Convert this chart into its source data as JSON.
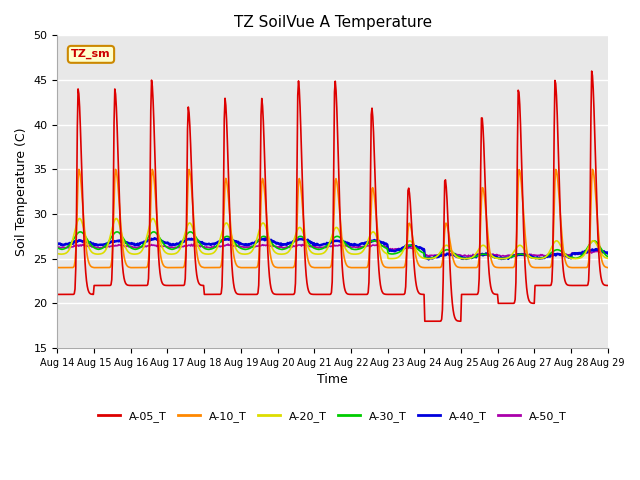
{
  "title": "TZ SoilVue A Temperature",
  "xlabel": "Time",
  "ylabel": "Soil Temperature (C)",
  "ylim": [
    15,
    50
  ],
  "bg_color": "#e8e8e8",
  "grid_color": "white",
  "annotation_text": "TZ_sm",
  "annotation_color": "#cc0000",
  "annotation_bg": "#ffffcc",
  "annotation_border": "#cc8800",
  "series_names": [
    "A-05_T",
    "A-10_T",
    "A-20_T",
    "A-30_T",
    "A-40_T",
    "A-50_T"
  ],
  "series_colors": [
    "#dd0000",
    "#ff8800",
    "#dddd00",
    "#00cc00",
    "#0000dd",
    "#aa00aa"
  ],
  "series_lw": [
    1.2,
    1.2,
    1.2,
    1.2,
    1.8,
    1.2
  ],
  "tick_dates": [
    "Aug 14",
    "Aug 15",
    "Aug 16",
    "Aug 17",
    "Aug 18",
    "Aug 19",
    "Aug 20",
    "Aug 21",
    "Aug 22",
    "Aug 23",
    "Aug 24",
    "Aug 25",
    "Aug 26",
    "Aug 27",
    "Aug 28",
    "Aug 29"
  ],
  "yticks": [
    15,
    20,
    25,
    30,
    35,
    40,
    45,
    50
  ],
  "peak_A05": [
    44,
    44,
    45,
    42,
    43,
    43,
    45,
    45,
    42,
    33,
    34,
    41,
    44,
    45,
    46
  ],
  "min_A05": [
    21,
    22,
    22,
    22,
    21,
    21,
    21,
    21,
    21,
    21,
    18,
    21,
    20,
    22,
    22
  ],
  "peak_A10": [
    35,
    35,
    35,
    35,
    34,
    34,
    34,
    34,
    33,
    29,
    29,
    33,
    35,
    35,
    35
  ],
  "min_A10": [
    24,
    24,
    24,
    24,
    24,
    24,
    24,
    24,
    24,
    24,
    24,
    24,
    24,
    24,
    24
  ],
  "peak_A20": [
    29.5,
    29.5,
    29.5,
    29,
    29,
    29,
    28.5,
    28.5,
    28,
    27,
    26.5,
    26.5,
    26.5,
    27,
    27
  ],
  "min_A20": [
    25.5,
    25.5,
    25.5,
    25.5,
    25.5,
    25.5,
    25.5,
    25.5,
    25.5,
    25,
    25,
    25,
    25,
    25,
    25
  ],
  "peak_A30": [
    28,
    28,
    28,
    28,
    27.5,
    27.5,
    27.5,
    27.5,
    27,
    26.5,
    26,
    25.5,
    25.5,
    26,
    27
  ],
  "min_A30": [
    26,
    26,
    26,
    26,
    26,
    26,
    26,
    26,
    26,
    25.5,
    25,
    25,
    25,
    25,
    25
  ],
  "peak_A40": [
    27,
    27,
    27.2,
    27.2,
    27.2,
    27.2,
    27.2,
    27,
    27,
    26.5,
    25.5,
    25.5,
    25.5,
    25.5,
    26
  ],
  "min_A40": [
    26.5,
    26.5,
    26.5,
    26.5,
    26.5,
    26.5,
    26.5,
    26.5,
    26.5,
    25.8,
    25,
    25,
    25,
    25,
    25.5
  ],
  "peak_A50": [
    26.5,
    26.5,
    26.5,
    26.5,
    26.5,
    26.5,
    26.5,
    26.5,
    26.5,
    26.2,
    25.5,
    25.5,
    25.5,
    25.5,
    25.8
  ],
  "min_A50": [
    26.2,
    26.2,
    26.2,
    26.2,
    26.2,
    26.2,
    26.2,
    26.2,
    26.2,
    26.0,
    25.3,
    25.3,
    25.3,
    25.3,
    25.5
  ]
}
